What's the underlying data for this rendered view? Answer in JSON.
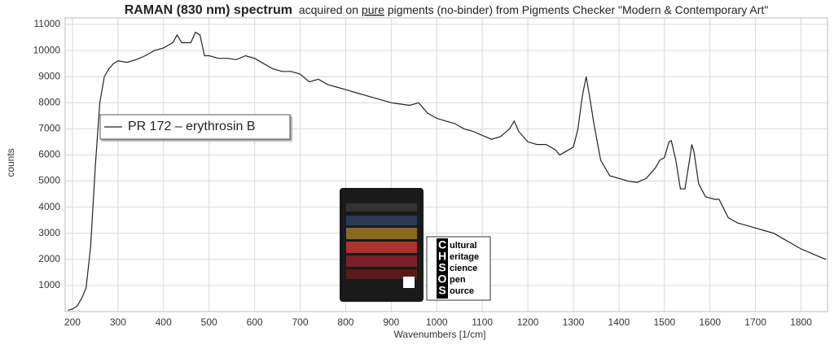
{
  "chart_data": {
    "type": "line",
    "title_parts": [
      "RAMAN (830 nm) spectrum",
      "acquired on ",
      "pure",
      " pigments (no-binder) from Pigments Checker \"Modern & Contemporary Art\""
    ],
    "x_label": "Wavenumbers [1/cm]",
    "y_label": "counts",
    "xlim": [
      184,
      1858
    ],
    "ylim": [
      0,
      11250
    ],
    "xticks": [
      200,
      300,
      400,
      500,
      600,
      700,
      800,
      900,
      1000,
      1100,
      1200,
      1300,
      1400,
      1500,
      1600,
      1700,
      1800
    ],
    "yticks": [
      1000,
      2000,
      3000,
      4000,
      5000,
      6000,
      7000,
      8000,
      9000,
      10000,
      11000
    ],
    "grid": true,
    "x": [
      190,
      200,
      210,
      220,
      230,
      240,
      250,
      260,
      270,
      280,
      290,
      300,
      320,
      340,
      360,
      380,
      400,
      420,
      430,
      440,
      460,
      470,
      480,
      490,
      500,
      520,
      540,
      560,
      580,
      600,
      620,
      640,
      660,
      680,
      700,
      720,
      740,
      760,
      780,
      800,
      820,
      840,
      860,
      880,
      900,
      920,
      940,
      960,
      980,
      1000,
      1020,
      1040,
      1060,
      1080,
      1100,
      1120,
      1140,
      1160,
      1170,
      1180,
      1200,
      1220,
      1240,
      1260,
      1270,
      1280,
      1300,
      1310,
      1320,
      1328,
      1335,
      1345,
      1360,
      1380,
      1400,
      1420,
      1440,
      1460,
      1480,
      1490,
      1500,
      1510,
      1515,
      1525,
      1535,
      1545,
      1555,
      1560,
      1565,
      1575,
      1590,
      1610,
      1620,
      1640,
      1660,
      1680,
      1700,
      1720,
      1740,
      1760,
      1780,
      1800,
      1820,
      1840,
      1855
    ],
    "series": [
      {
        "name": "PR 172 – erythrosin B",
        "color": "#222222",
        "values": [
          50,
          100,
          200,
          500,
          900,
          2500,
          5500,
          8000,
          9000,
          9300,
          9500,
          9600,
          9550,
          9650,
          9800,
          10000,
          10100,
          10300,
          10600,
          10300,
          10300,
          10700,
          10600,
          9800,
          9800,
          9700,
          9700,
          9650,
          9800,
          9700,
          9500,
          9300,
          9200,
          9200,
          9100,
          8800,
          8900,
          8700,
          8600,
          8500,
          8400,
          8300,
          8200,
          8100,
          8000,
          7950,
          7900,
          8000,
          7600,
          7400,
          7300,
          7200,
          7000,
          6900,
          6750,
          6600,
          6700,
          7000,
          7300,
          6900,
          6500,
          6400,
          6400,
          6200,
          6000,
          6100,
          6300,
          7000,
          8300,
          9000,
          8300,
          7200,
          5800,
          5200,
          5100,
          5000,
          4950,
          5100,
          5500,
          5800,
          5900,
          6500,
          6550,
          5800,
          4700,
          4700,
          5800,
          6400,
          6100,
          4900,
          4400,
          4300,
          4300,
          3600,
          3400,
          3300,
          3200,
          3100,
          3000,
          2800,
          2600,
          2400,
          2250,
          2100,
          2000
        ]
      }
    ]
  },
  "logo": {
    "letters": [
      "C",
      "H",
      "S",
      "O",
      "S"
    ],
    "words": [
      "ultural",
      "eritage",
      "cience",
      "pen",
      "ource"
    ]
  }
}
